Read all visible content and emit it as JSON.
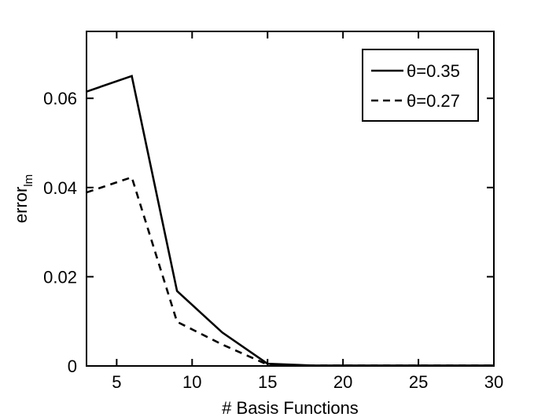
{
  "chart_data": {
    "type": "line",
    "title": "",
    "xlabel": "# Basis Functions",
    "ylabel": "error",
    "ylabel_subscript": "lm",
    "xlim": [
      3,
      30
    ],
    "ylim": [
      0,
      0.075
    ],
    "xticks": [
      5,
      10,
      15,
      20,
      25,
      30
    ],
    "xtick_labels": [
      "5",
      "10",
      "15",
      "20",
      "25",
      "30"
    ],
    "yticks": [
      0,
      0.02,
      0.04,
      0.06
    ],
    "ytick_labels": [
      "0",
      "0.02",
      "0.04",
      "0.06"
    ],
    "grid": false,
    "legend_position": "top-right",
    "x": [
      3,
      6,
      9,
      12,
      15,
      18,
      21,
      24,
      27,
      30
    ],
    "series": [
      {
        "name": "θ=0.35",
        "line_style": "solid",
        "color": "#000000",
        "values": [
          0.0615,
          0.065,
          0.0168,
          0.0075,
          0.0005,
          0.0001,
          0.0001,
          0.0001,
          0.0001,
          0.0001
        ]
      },
      {
        "name": "θ=0.27",
        "line_style": "dashed",
        "color": "#000000",
        "values": [
          0.0389,
          0.0423,
          0.0099,
          0.0048,
          0.0003,
          0.0001,
          0.0001,
          0.0001,
          0.0001,
          0.0001
        ]
      }
    ]
  }
}
